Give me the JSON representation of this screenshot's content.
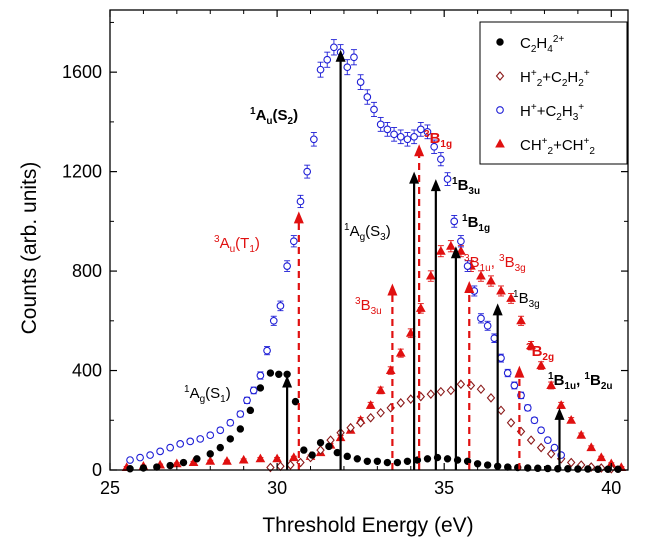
{
  "chart_data": {
    "type": "scatter",
    "xlabel": "Threshold Energy (eV)",
    "ylabel": "Counts (arb. units)",
    "xlim": [
      25,
      40.5
    ],
    "ylim": [
      0,
      1850
    ],
    "xticks": [
      25,
      30,
      35,
      40
    ],
    "yticks": [
      0,
      400,
      800,
      1200,
      1600
    ],
    "grid": false,
    "legend_position": "top-right",
    "series": [
      {
        "name": "C2H4 2+",
        "marker": "filled-circle",
        "color": "#000000",
        "x": [
          25.6,
          26.0,
          26.4,
          26.8,
          27.2,
          27.6,
          28.0,
          28.3,
          28.6,
          28.9,
          29.2,
          29.5,
          29.8,
          30.05,
          30.3,
          30.55,
          30.8,
          31.05,
          31.3,
          31.55,
          31.8,
          32.1,
          32.4,
          32.7,
          33.0,
          33.3,
          33.6,
          33.9,
          34.2,
          34.5,
          34.8,
          35.1,
          35.4,
          35.7,
          36.0,
          36.3,
          36.6,
          36.9,
          37.2,
          37.5,
          37.8,
          38.1,
          38.4,
          38.7,
          39.0,
          39.3,
          39.6,
          39.9,
          40.2
        ],
        "y": [
          5,
          8,
          12,
          18,
          30,
          45,
          65,
          90,
          125,
          165,
          240,
          330,
          390,
          385,
          385,
          275,
          80,
          60,
          110,
          95,
          70,
          55,
          45,
          35,
          35,
          30,
          30,
          35,
          40,
          45,
          50,
          45,
          40,
          35,
          25,
          20,
          15,
          12,
          10,
          8,
          7,
          6,
          5,
          5,
          4,
          4,
          3,
          3,
          3
        ]
      },
      {
        "name": "H2+ + C2H2+",
        "marker": "open-diamond",
        "color": "#8b1a1a",
        "x": [
          29.8,
          30.1,
          30.4,
          30.7,
          31.0,
          31.3,
          31.6,
          31.9,
          32.2,
          32.5,
          32.8,
          33.1,
          33.4,
          33.7,
          34.0,
          34.3,
          34.6,
          34.9,
          35.2,
          35.5,
          35.8,
          36.1,
          36.4,
          36.7,
          37.0,
          37.3,
          37.6,
          37.9,
          38.2,
          38.5,
          38.8,
          39.1,
          39.4,
          39.7,
          40.0
        ],
        "y": [
          10,
          15,
          20,
          30,
          50,
          80,
          120,
          150,
          170,
          190,
          210,
          230,
          250,
          270,
          285,
          295,
          305,
          315,
          320,
          345,
          340,
          325,
          290,
          240,
          190,
          155,
          120,
          90,
          65,
          45,
          30,
          20,
          12,
          8,
          5
        ]
      },
      {
        "name": "H+ + C2H3+",
        "marker": "open-circle",
        "color": "#1f1fd6",
        "x": [
          25.6,
          25.9,
          26.2,
          26.5,
          26.8,
          27.1,
          27.4,
          27.7,
          28.0,
          28.3,
          28.6,
          28.9,
          29.1,
          29.3,
          29.5,
          29.7,
          29.9,
          30.1,
          30.3,
          30.5,
          30.7,
          30.9,
          31.1,
          31.3,
          31.5,
          31.7,
          31.9,
          32.1,
          32.3,
          32.5,
          32.7,
          32.9,
          33.1,
          33.3,
          33.5,
          33.7,
          33.9,
          34.1,
          34.3,
          34.5,
          34.7,
          34.9,
          35.1,
          35.3,
          35.5,
          35.7,
          35.9,
          36.1,
          36.3,
          36.5,
          36.7,
          36.9,
          37.1,
          37.3,
          37.5,
          37.7,
          37.9,
          38.1,
          38.3,
          38.5
        ],
        "y": [
          40,
          50,
          60,
          75,
          90,
          105,
          115,
          125,
          140,
          160,
          190,
          225,
          280,
          320,
          380,
          480,
          600,
          660,
          820,
          920,
          1080,
          1200,
          1330,
          1610,
          1650,
          1700,
          1680,
          1620,
          1660,
          1560,
          1500,
          1450,
          1390,
          1370,
          1350,
          1340,
          1330,
          1340,
          1370,
          1360,
          1300,
          1250,
          1170,
          1000,
          920,
          820,
          720,
          610,
          580,
          530,
          450,
          390,
          340,
          300,
          250,
          200,
          160,
          120,
          90,
          60
        ]
      },
      {
        "name": "CH2+ + CH2+",
        "marker": "filled-triangle",
        "color": "#e01010",
        "x": [
          25.5,
          26.0,
          26.5,
          27.0,
          27.5,
          28.0,
          28.5,
          29.0,
          29.5,
          30.0,
          30.5,
          31.0,
          31.3,
          31.6,
          31.9,
          32.2,
          32.5,
          32.8,
          33.1,
          33.4,
          33.7,
          34.0,
          34.3,
          34.6,
          34.9,
          35.2,
          35.5,
          35.8,
          36.1,
          36.4,
          36.7,
          37.0,
          37.3,
          37.6,
          37.9,
          38.2,
          38.5,
          38.8,
          39.1,
          39.4,
          39.7,
          40.0,
          40.3
        ],
        "y": [
          10,
          15,
          20,
          25,
          30,
          35,
          35,
          40,
          45,
          45,
          50,
          55,
          70,
          100,
          130,
          160,
          200,
          260,
          320,
          400,
          470,
          550,
          650,
          780,
          880,
          900,
          880,
          820,
          780,
          760,
          720,
          690,
          600,
          500,
          420,
          340,
          260,
          200,
          140,
          90,
          50,
          25,
          10
        ]
      }
    ],
    "annotations": [
      {
        "label": "1Ag(S1)",
        "x": 30.3,
        "y_arrow": 380,
        "color": "#000000",
        "style": "solid",
        "bold": false
      },
      {
        "label": "3Au(T1)",
        "x": 30.65,
        "y_arrow": 1040,
        "color": "#e01010",
        "style": "dashed",
        "bold": false
      },
      {
        "label": "1Au(S2)",
        "x": 31.9,
        "y_arrow": 1690,
        "color": "#000000",
        "style": "solid",
        "bold": true
      },
      {
        "label": "1Ag(S3)",
        "x": 34.1,
        "y_arrow": 1200,
        "color": "#000000",
        "style": "solid",
        "bold": false
      },
      {
        "label": "3B3u",
        "x": 33.45,
        "y_arrow": 750,
        "color": "#e01010",
        "style": "dashed",
        "bold": false
      },
      {
        "label": "3B1g",
        "x": 34.25,
        "y_arrow": 1310,
        "color": "#e01010",
        "style": "dashed",
        "bold": true
      },
      {
        "label": "1B3u",
        "x": 34.75,
        "y_arrow": 1170,
        "color": "#000000",
        "style": "solid",
        "bold": true
      },
      {
        "label": "1B1g",
        "x": 35.35,
        "y_arrow": 900,
        "color": "#000000",
        "style": "solid",
        "bold": true
      },
      {
        "label": "3B1u, 3B3g",
        "x": 35.75,
        "y_arrow": 760,
        "color": "#e01010",
        "style": "dashed",
        "bold": false
      },
      {
        "label": "1B3g",
        "x": 36.6,
        "y_arrow": 670,
        "color": "#000000",
        "style": "solid",
        "bold": false
      },
      {
        "label": "3B2g",
        "x": 37.25,
        "y_arrow": 420,
        "color": "#e01010",
        "style": "dashed",
        "bold": true
      },
      {
        "label": "1B1u, 1B2u",
        "x": 38.45,
        "y_arrow": 250,
        "color": "#000000",
        "style": "solid",
        "bold": true
      }
    ]
  }
}
